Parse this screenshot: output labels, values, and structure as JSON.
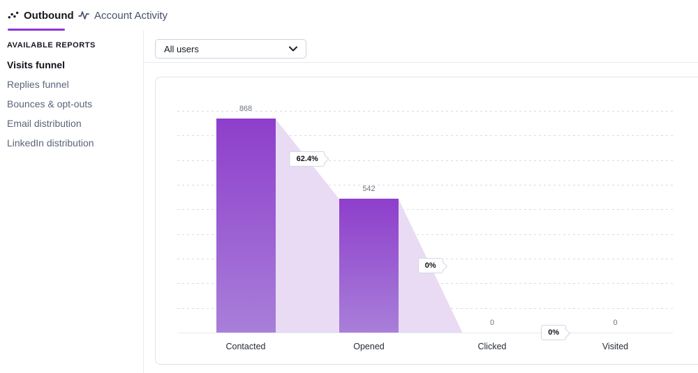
{
  "header": {
    "tabs": [
      {
        "label": "Outbound",
        "icon": "scatter-trend-icon",
        "active": true
      },
      {
        "label": "Account Activity",
        "icon": "activity-pulse-icon",
        "active": false
      }
    ]
  },
  "sidebar": {
    "section_title": "AVAILABLE REPORTS",
    "items": [
      {
        "label": "Visits funnel",
        "active": true
      },
      {
        "label": "Replies funnel",
        "active": false
      },
      {
        "label": "Bounces & opt-outs",
        "active": false
      },
      {
        "label": "Email distribution",
        "active": false
      },
      {
        "label": "LinkedIn distribution",
        "active": false
      }
    ]
  },
  "toolbar": {
    "user_filter": {
      "value": "All users",
      "icon": "chevron-down-icon"
    }
  },
  "chart_data": {
    "type": "bar",
    "subtype": "funnel",
    "title": "Visits funnel",
    "categories": [
      "Contacted",
      "Opened",
      "Clicked",
      "Visited"
    ],
    "values": [
      868,
      542,
      0,
      0
    ],
    "value_labels": [
      "868",
      "542",
      "0",
      "0"
    ],
    "conversion_labels": [
      "62.4%",
      "0%",
      "0%"
    ],
    "ylim": [
      0,
      900
    ],
    "gridline_step": 100,
    "grid": "horizontal-dotted",
    "legend_position": "none",
    "xlabel": "",
    "ylabel": ""
  },
  "colors": {
    "accent_purple": "#8d35d6",
    "bar_top": "#8e3ecb",
    "bar_bottom": "#a87fd9",
    "funnel_fill": "#e9dbf4",
    "grid_dotted": "#d7dbe7",
    "baseline": "#e6e9f0",
    "value_label": "#6e7480",
    "tab_inactive": "#46506a",
    "text_dark": "#14181f"
  }
}
